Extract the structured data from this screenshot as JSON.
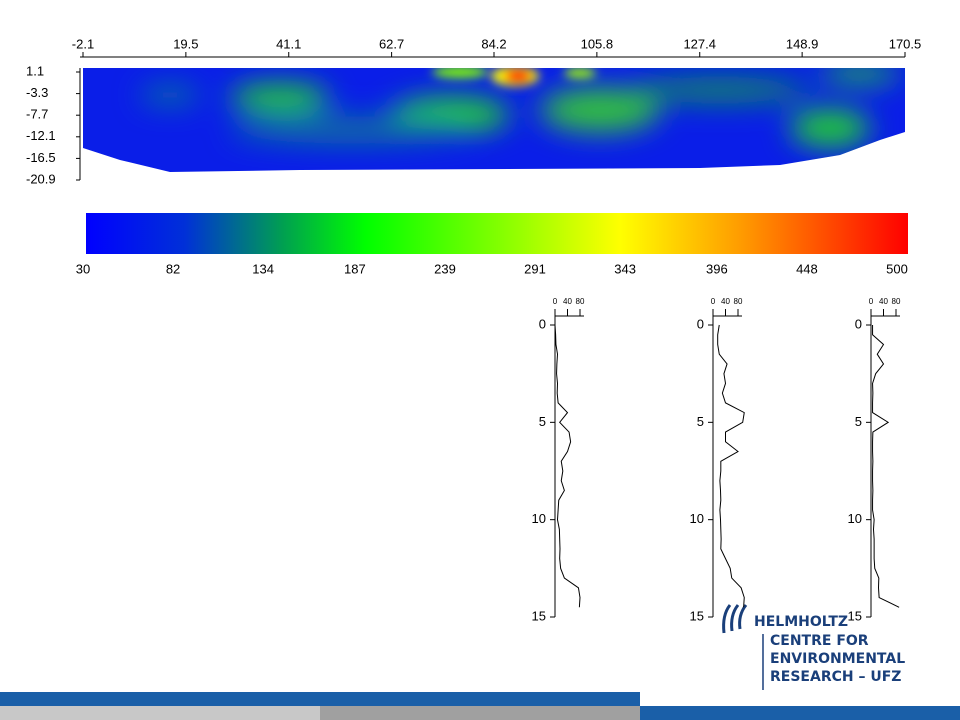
{
  "section": {
    "xticks": [
      -2.1,
      19.5,
      41.1,
      62.7,
      84.2,
      105.8,
      127.4,
      148.9,
      170.5
    ],
    "yticks": [
      1.1,
      -3.3,
      -7.7,
      -12.1,
      -16.5,
      -20.9
    ]
  },
  "colorbar": {
    "ticks": [
      30,
      82,
      134,
      187,
      239,
      291,
      343,
      396,
      448,
      500
    ]
  },
  "logs": {
    "depth": [
      0,
      0.5,
      1,
      1.5,
      2,
      2.5,
      3,
      3.5,
      4,
      4.5,
      5,
      5.5,
      6,
      6.5,
      7,
      7.5,
      8,
      8.5,
      9,
      9.5,
      10,
      10.5,
      11,
      11.5,
      12,
      12.5,
      13,
      13.5,
      14,
      14.5
    ],
    "depth_ticks": [
      0,
      5,
      10,
      15
    ],
    "value_ticks": [
      0,
      40,
      80
    ],
    "profiles": [
      {
        "values": [
          0,
          2,
          3,
          8,
          6,
          5,
          8,
          7,
          10,
          40,
          15,
          45,
          50,
          40,
          20,
          25,
          20,
          30,
          12,
          10,
          8,
          14,
          15,
          16,
          15,
          18,
          30,
          75,
          80,
          78
        ]
      },
      {
        "values": [
          20,
          15,
          15,
          20,
          45,
          35,
          40,
          30,
          40,
          100,
          95,
          40,
          40,
          80,
          25,
          25,
          22,
          24,
          25,
          22,
          24,
          25,
          26,
          25,
          40,
          55,
          60,
          90,
          100,
          98
        ]
      },
      {
        "values": [
          5,
          5,
          40,
          20,
          40,
          15,
          5,
          6,
          5,
          5,
          55,
          6,
          5,
          5,
          6,
          5,
          5,
          6,
          5,
          5,
          10,
          8,
          10,
          10,
          10,
          12,
          25,
          24,
          26,
          90
        ]
      }
    ]
  },
  "logo": {
    "name": "HELMHOLTZ",
    "lines": [
      "CENTRE FOR",
      "ENVIRONMENTAL",
      "RESEARCH – UFZ"
    ]
  }
}
